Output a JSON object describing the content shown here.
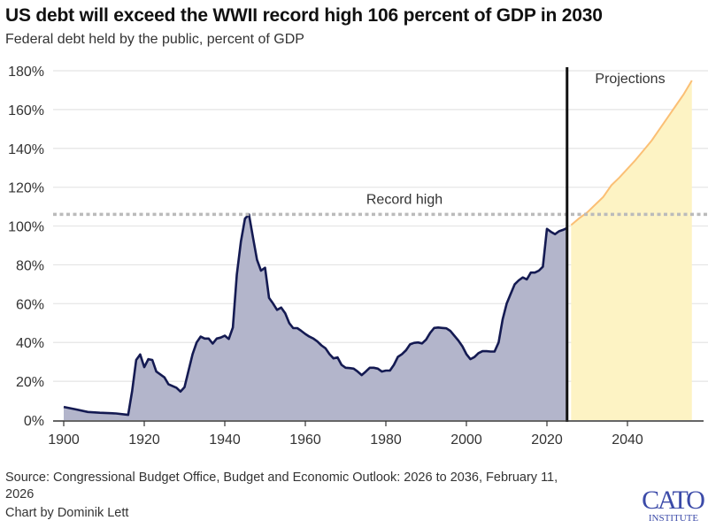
{
  "chart_data": {
    "type": "area",
    "title": "US debt will exceed the WWII record high 106 percent of GDP in 2030",
    "subtitle": "Federal debt held by the public, percent of GDP",
    "xlabel": "",
    "ylabel": "",
    "xlim": [
      1900,
      2058
    ],
    "ylim": [
      0,
      180
    ],
    "x_ticks": [
      1900,
      1920,
      1940,
      1960,
      1980,
      2000,
      2020,
      2040
    ],
    "y_ticks": [
      0,
      20,
      40,
      60,
      80,
      100,
      120,
      140,
      160,
      180
    ],
    "y_tick_labels": [
      "0%",
      "20%",
      "40%",
      "60%",
      "80%",
      "100%",
      "120%",
      "140%",
      "160%",
      "180%"
    ],
    "grid": "horizontal",
    "series": [
      {
        "type": "historical",
        "color": "#141a52",
        "fill": "#b3b5cb",
        "x": [
          1900,
          1903,
          1906,
          1909,
          1913,
          1916,
          1917,
          1918,
          1919,
          1920,
          1921,
          1922,
          1923,
          1925,
          1926,
          1928,
          1929,
          1930,
          1932,
          1933,
          1934,
          1935,
          1936,
          1937,
          1938,
          1939,
          1940,
          1941,
          1942,
          1943,
          1944,
          1945,
          1946,
          1947,
          1948,
          1949,
          1950,
          1951,
          1952,
          1953,
          1954,
          1955,
          1956,
          1957,
          1958,
          1959,
          1960,
          1961,
          1962,
          1963,
          1964,
          1965,
          1966,
          1967,
          1968,
          1969,
          1970,
          1971,
          1972,
          1973,
          1974,
          1975,
          1976,
          1977,
          1978,
          1979,
          1980,
          1981,
          1982,
          1983,
          1984,
          1985,
          1986,
          1987,
          1988,
          1989,
          1990,
          1991,
          1992,
          1993,
          1994,
          1995,
          1996,
          1997,
          1998,
          1999,
          2000,
          2001,
          2002,
          2003,
          2004,
          2005,
          2006,
          2007,
          2008,
          2009,
          2010,
          2011,
          2012,
          2013,
          2014,
          2015,
          2016,
          2017,
          2018,
          2019,
          2020,
          2021,
          2022,
          2023,
          2024,
          2025
        ],
        "values": [
          6.8,
          5.5,
          4.2,
          3.8,
          3.4,
          2.7,
          15,
          31,
          33.8,
          27.3,
          31.4,
          31,
          25,
          22,
          18.5,
          16.7,
          14.7,
          17,
          34,
          40,
          43,
          42,
          42,
          39.4,
          42,
          42.5,
          43.5,
          41.8,
          47.7,
          75,
          92,
          103.8,
          106,
          94,
          82.6,
          77,
          78.5,
          63,
          60,
          56.8,
          58,
          55,
          50,
          47.4,
          47.4,
          46,
          44.4,
          43,
          42,
          40.5,
          38.5,
          37,
          34,
          31.8,
          32.3,
          28.5,
          27,
          26.8,
          26.5,
          25,
          23.2,
          25,
          27,
          27,
          26.5,
          25,
          25.5,
          25.5,
          28.5,
          32.6,
          34,
          36,
          39,
          39.8,
          40,
          39.5,
          41.5,
          45,
          47.5,
          47.7,
          47.5,
          47.3,
          46,
          43.5,
          41,
          38,
          34,
          31.4,
          32.5,
          34.5,
          35.5,
          35.5,
          35.3,
          35.3,
          40,
          52,
          60,
          65,
          70,
          72,
          73.5,
          72.5,
          76,
          76,
          77,
          79,
          98.5,
          97,
          95.8,
          97.3,
          98,
          99
        ]
      },
      {
        "type": "projection",
        "color": "#fbbf75",
        "fill": "#fdf3c4",
        "x": [
          2026,
          2028,
          2030,
          2032,
          2034,
          2036,
          2038,
          2040,
          2042,
          2044,
          2046,
          2048,
          2050,
          2052,
          2054,
          2056
        ],
        "values": [
          100.5,
          104,
          107,
          111,
          115,
          121,
          125,
          129.5,
          134,
          139,
          144,
          150,
          156,
          162,
          168,
          175
        ]
      }
    ],
    "annotations": {
      "record_high": {
        "label": "Record high",
        "value": 106,
        "color": "#bbbbbb"
      },
      "projections": {
        "label": "Projections",
        "divider_year": 2025
      }
    }
  },
  "footer": {
    "source_line1": "Source: Congressional Budget Office, Budget and Economic Outlook: 2026 to 2036, February 11,",
    "source_line2": "2026",
    "credit": "Chart by Dominik Lett",
    "logo_text": "CATO INSTITUTE",
    "logo_color": "#3b4aa8"
  }
}
